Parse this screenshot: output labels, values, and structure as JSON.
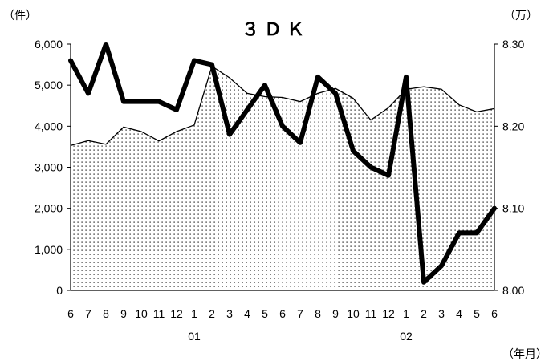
{
  "chart_data": {
    "type": "area",
    "title": "３ＤＫ",
    "left_unit": "（件）",
    "right_unit": "（万）",
    "x_unit": "（年月）",
    "x": [
      "6",
      "7",
      "8",
      "9",
      "10",
      "11",
      "12",
      "1",
      "2",
      "3",
      "4",
      "5",
      "6",
      "7",
      "8",
      "9",
      "10",
      "11",
      "12",
      "1",
      "2",
      "3",
      "4",
      "5",
      "6"
    ],
    "year_labels": [
      {
        "index": 7,
        "label": "01"
      },
      {
        "index": 19,
        "label": "02"
      }
    ],
    "y_left": {
      "min": 0,
      "max": 6000,
      "ticks": [
        0,
        1000,
        2000,
        3000,
        4000,
        5000,
        6000
      ],
      "tick_labels": [
        "0",
        "1,000",
        "2,000",
        "3,000",
        "4,000",
        "5,000",
        "6,000"
      ]
    },
    "y_right": {
      "min": 8.0,
      "max": 8.3,
      "ticks": [
        8.0,
        8.1,
        8.2,
        8.3
      ],
      "tick_labels": [
        "8.00",
        "8.10",
        "8.20",
        "8.30"
      ]
    },
    "series": [
      {
        "type": "area",
        "axis": "left",
        "pattern": "dotted",
        "values": [
          3530,
          3650,
          3560,
          3980,
          3870,
          3640,
          3870,
          4030,
          5460,
          5180,
          4800,
          4720,
          4700,
          4600,
          4800,
          4920,
          4680,
          4150,
          4450,
          4900,
          4960,
          4900,
          4520,
          4350,
          4430
        ]
      },
      {
        "type": "line",
        "axis": "right",
        "values": [
          8.28,
          8.24,
          8.3,
          8.23,
          8.23,
          8.23,
          8.22,
          8.28,
          8.275,
          8.19,
          8.22,
          8.25,
          8.2,
          8.18,
          8.26,
          8.24,
          8.17,
          8.15,
          8.14,
          8.26,
          8.01,
          8.03,
          8.07,
          8.07,
          8.1
        ]
      }
    ]
  }
}
